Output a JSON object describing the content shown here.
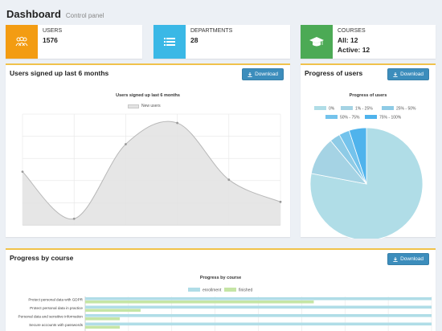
{
  "header": {
    "title": "Dashboard",
    "subtitle": "Control panel"
  },
  "stats": {
    "users": {
      "label": "USERS",
      "value": "1576",
      "color": "#f39c12",
      "icon": "users-icon"
    },
    "departments": {
      "label": "DEPARTMENTS",
      "value": "28",
      "color": "#3ab8e6",
      "icon": "list-icon"
    },
    "courses": {
      "label": "COURSES",
      "line1": "All: 12",
      "line2": "Active: 12",
      "color": "#4caa55",
      "icon": "graduation-cap-icon"
    }
  },
  "download_label": "Download",
  "signups": {
    "box_title": "Users signed up last 6 months",
    "chart_data": {
      "type": "area",
      "title": "Users signed up last 6 months",
      "series": [
        {
          "name": "New users",
          "values": [
            60,
            7,
            91,
            115,
            51,
            26
          ]
        }
      ],
      "x": [
        0,
        1,
        2,
        3,
        4,
        5
      ],
      "ylim": [
        0,
        125
      ],
      "grid": true,
      "legend": "top",
      "fill": "#e3e3e3",
      "stroke": "#b8b8b8"
    }
  },
  "progress_users": {
    "box_title": "Progress of users",
    "chart_data": {
      "type": "pie",
      "title": "Progress of users",
      "labels": [
        "0%",
        "1% - 25%",
        "25% - 50%",
        "50% - 75%",
        "75% - 100%"
      ],
      "values": [
        78,
        11,
        3,
        3,
        5
      ],
      "colors": [
        "#b0dde7",
        "#a5d3e4",
        "#8ecbe6",
        "#74c3ec",
        "#4fb3ec"
      ],
      "legend": "top"
    }
  },
  "progress_course": {
    "box_title": "Progress by course",
    "chart_data": {
      "type": "bar",
      "orientation": "horizontal",
      "title": "Progress by course",
      "categories": [
        "Protect personal data with GDPR",
        "Protect personal data in practice",
        "Personal data and sensitive information",
        "Secure accounts with passwords"
      ],
      "series": [
        {
          "name": "enrollment",
          "values": [
            100,
            100,
            100,
            100
          ],
          "color": "#b0dde7"
        },
        {
          "name": "finished",
          "values": [
            66,
            16,
            10,
            10
          ],
          "color": "#c5e5a5"
        }
      ],
      "xlim": [
        0,
        100
      ],
      "legend": "top"
    }
  }
}
